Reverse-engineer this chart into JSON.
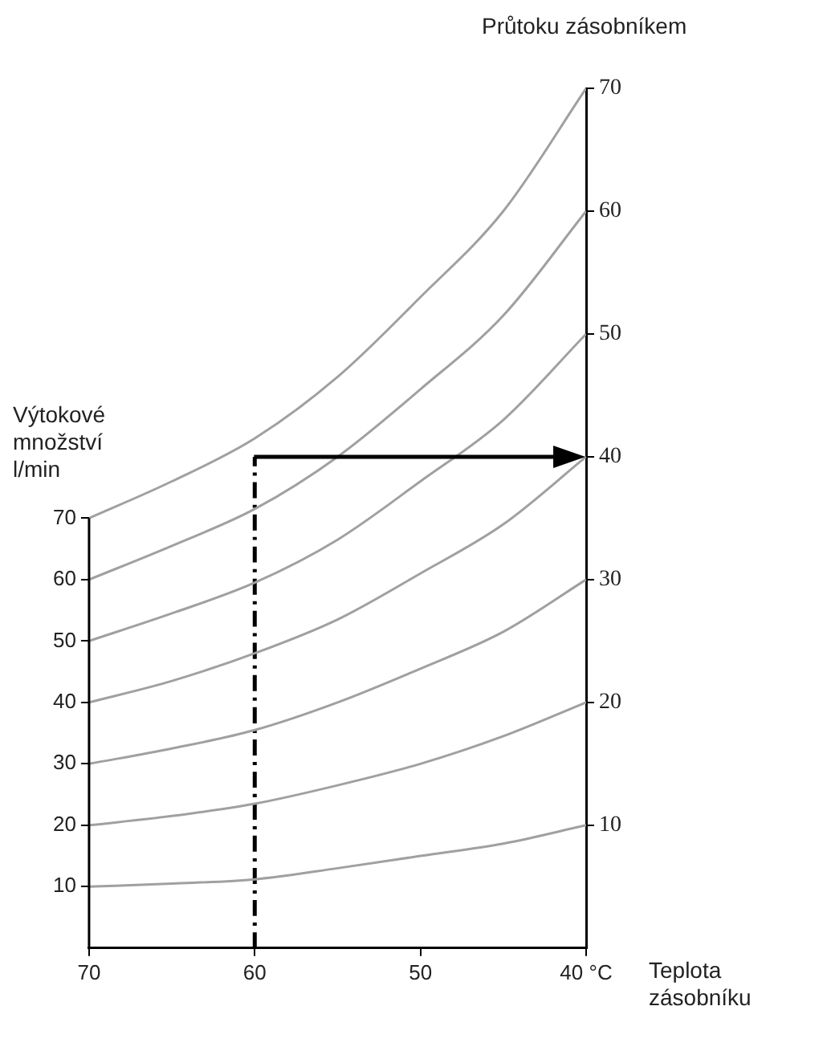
{
  "chart_data": {
    "type": "line",
    "xlabel": "Teplota zásobníku",
    "ylabel": "Výtokové množství l/min",
    "y2label": "Průtoku zásobníkem",
    "x": [
      70,
      65,
      60,
      55,
      50,
      45,
      40
    ],
    "xlim": [
      70,
      40
    ],
    "xticks": [
      70,
      60,
      50,
      {
        "value": 40,
        "label": "40 °C"
      }
    ],
    "ylim": [
      0,
      140
    ],
    "yticks": [
      10,
      20,
      30,
      40,
      50,
      60,
      70
    ],
    "y2lim": [
      0,
      70
    ],
    "y2ticks": [
      10,
      20,
      30,
      40,
      50,
      60,
      70
    ],
    "grid": false,
    "legend": false,
    "marker": "none",
    "line_style": "solid",
    "series": [
      {
        "color": "#a0a0a0",
        "values": [
          10,
          10.5,
          11.2,
          13,
          15,
          17,
          20
        ]
      },
      {
        "color": "#a0a0a0",
        "values": [
          20,
          21.5,
          23.5,
          26.5,
          30,
          34.5,
          40
        ]
      },
      {
        "color": "#a0a0a0",
        "values": [
          30,
          32.5,
          35.5,
          40,
          45.5,
          51.5,
          60
        ]
      },
      {
        "color": "#a0a0a0",
        "values": [
          40,
          43.5,
          48,
          53.5,
          61,
          69,
          80
        ]
      },
      {
        "color": "#a0a0a0",
        "values": [
          50,
          54.5,
          59.5,
          66.5,
          76,
          86,
          100
        ]
      },
      {
        "color": "#a0a0a0",
        "values": [
          60,
          65.5,
          71.5,
          80,
          91,
          103,
          120
        ]
      },
      {
        "color": "#a0a0a0",
        "values": [
          70,
          76,
          83,
          93,
          106,
          120,
          140
        ]
      },
      {
        "color": "#000000",
        "axis": "y2",
        "x": [
          60,
          60
        ],
        "values": [
          0,
          40
        ],
        "line_style": "dashed"
      }
    ]
  }
}
